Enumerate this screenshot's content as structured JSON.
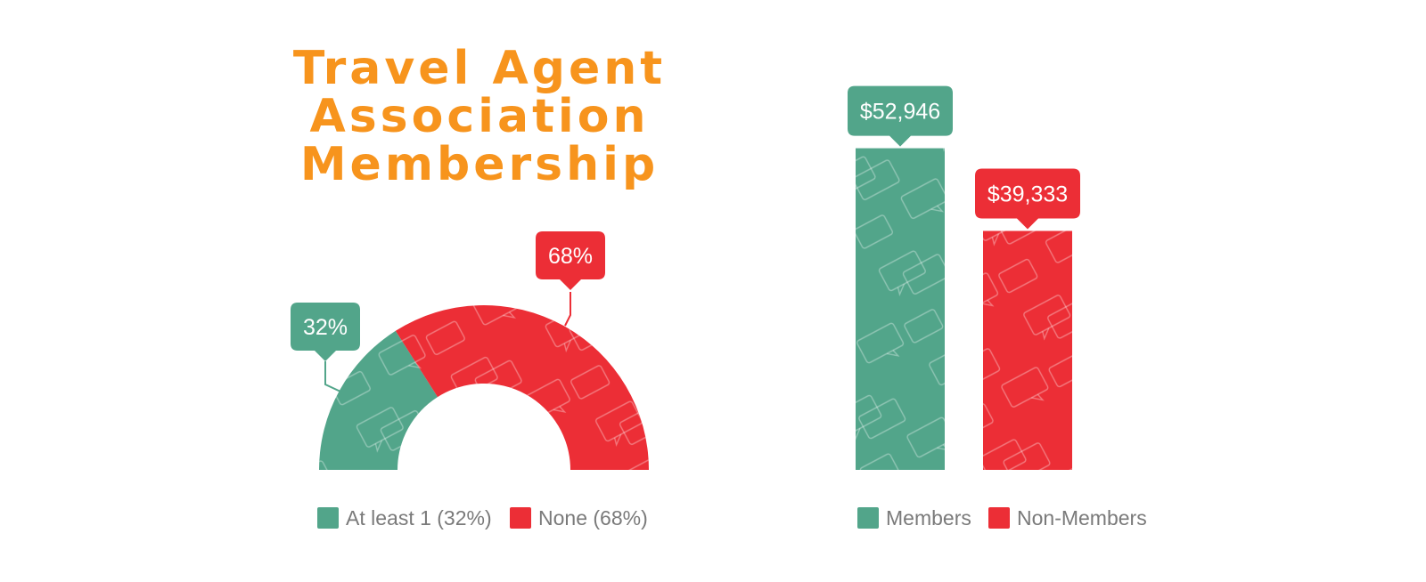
{
  "page": {
    "title_lines": [
      "Travel Agent",
      "Association",
      "Membership"
    ]
  },
  "colors": {
    "title": "#F7941D",
    "green": "#52A58A",
    "red": "#EC2E36",
    "legend_text": "#7A7A7A",
    "pattern_stroke": "#ffffff"
  },
  "chart_data": [
    {
      "type": "pie",
      "variant": "half-donut",
      "categories": [
        "At least 1",
        "None"
      ],
      "values": [
        32,
        68
      ],
      "unit": "%",
      "data_labels": [
        "32%",
        "68%"
      ],
      "legend": [
        "At least 1 (32%)",
        "None (68%)"
      ],
      "colors": [
        "#52A58A",
        "#EC2E36"
      ],
      "legend_position": "bottom"
    },
    {
      "type": "bar",
      "categories": [
        "Members",
        "Non-Members"
      ],
      "values": [
        52946,
        39333
      ],
      "data_labels": [
        "$52,946",
        "$39,333"
      ],
      "legend": [
        "Members",
        "Non-Members"
      ],
      "colors": [
        "#52A58A",
        "#EC2E36"
      ],
      "ylim": [
        0,
        60000
      ],
      "grid": false,
      "legend_position": "bottom"
    }
  ]
}
